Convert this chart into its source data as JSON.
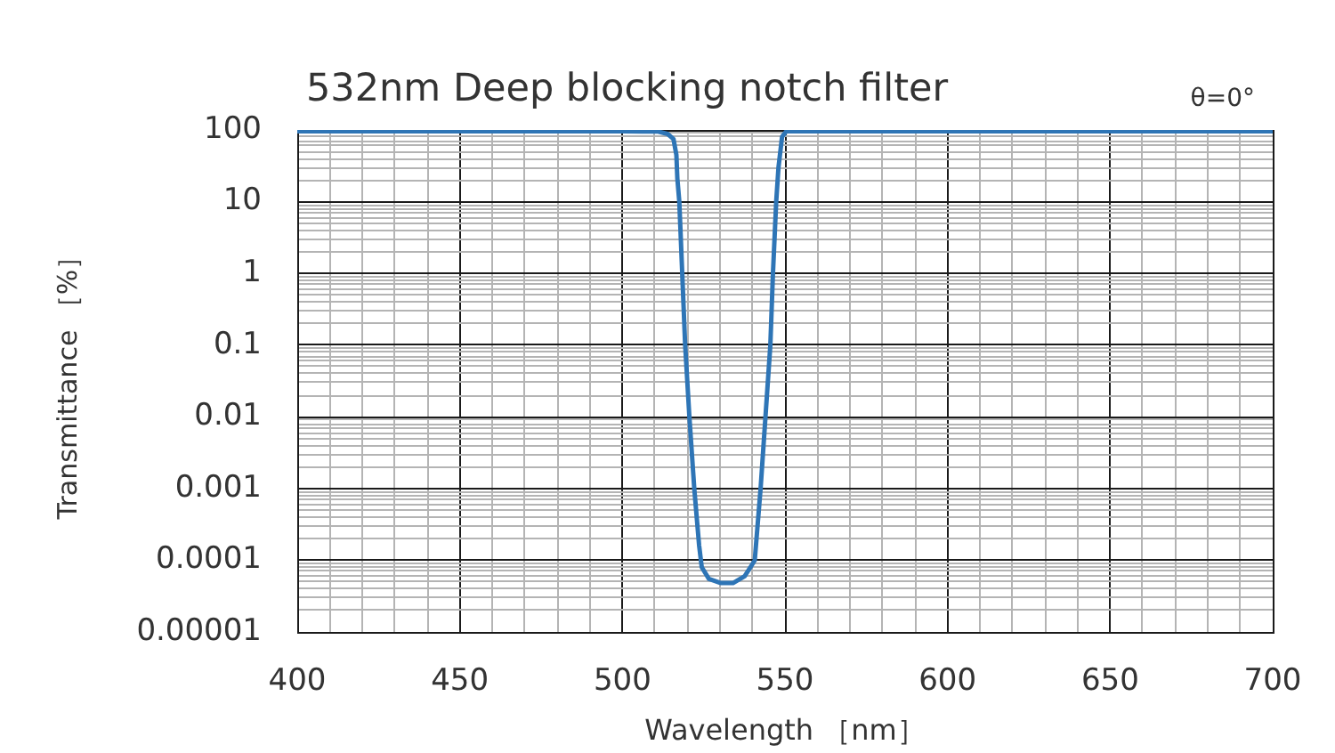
{
  "chart_data": {
    "type": "line",
    "title": "532nm Deep blocking notch filter",
    "xlabel": "Wavelength ［nm］",
    "ylabel": "Transmittance ［%］",
    "annotations": [
      "θ=0°"
    ],
    "x": [
      400,
      450,
      500,
      506,
      511,
      513.9,
      515.7,
      516.6,
      516.9,
      517.5,
      518.4,
      519.3,
      520.6,
      522.1,
      523.6,
      524.4,
      526.6,
      530.3,
      534,
      537.6,
      539.4,
      540.7,
      542.5,
      544,
      545.5,
      546.3,
      547.3,
      548,
      549.1,
      550.4,
      560,
      600,
      650,
      700
    ],
    "series": [
      {
        "color": "#2e75b6",
        "values": [
          96,
          96,
          96,
          95,
          95,
          88,
          75,
          45,
          21,
          10,
          1,
          0.1,
          0.01,
          0.001,
          0.00016,
          8e-05,
          5.5e-05,
          4.8e-05,
          4.8e-05,
          6e-05,
          8e-05,
          0.0001,
          0.001,
          0.01,
          0.1,
          1,
          10,
          30,
          80,
          96,
          96,
          96,
          96,
          96
        ]
      }
    ],
    "xlim": [
      400,
      700
    ],
    "xticks": [
      400,
      {
        "value": 410,
        "label": null
      },
      {
        "value": 420,
        "label": null
      },
      {
        "value": 430,
        "label": null
      },
      {
        "value": 440,
        "label": null
      },
      450,
      {
        "value": 460,
        "label": null
      },
      {
        "value": 470,
        "label": null
      },
      {
        "value": 480,
        "label": null
      },
      {
        "value": 490,
        "label": null
      },
      500,
      {
        "value": 510,
        "label": null
      },
      {
        "value": 520,
        "label": null
      },
      {
        "value": 530,
        "label": null
      },
      {
        "value": 540,
        "label": null
      },
      550,
      {
        "value": 560,
        "label": null
      },
      {
        "value": 570,
        "label": null
      },
      {
        "value": 580,
        "label": null
      },
      {
        "value": 590,
        "label": null
      },
      600,
      {
        "value": 610,
        "label": null
      },
      {
        "value": 620,
        "label": null
      },
      {
        "value": 630,
        "label": null
      },
      {
        "value": 640,
        "label": null
      },
      650,
      {
        "value": 660,
        "label": null
      },
      {
        "value": 670,
        "label": null
      },
      {
        "value": 680,
        "label": null
      },
      {
        "value": 690,
        "label": null
      },
      700
    ],
    "ylim": [
      1e-05,
      100
    ],
    "yticks": [
      {
        "value": 1e-05,
        "label": "0.00001"
      },
      {
        "value": 2e-05,
        "label": null
      },
      {
        "value": 3e-05,
        "label": null
      },
      {
        "value": 4e-05,
        "label": null
      },
      {
        "value": 5e-05,
        "label": null
      },
      {
        "value": 6e-05,
        "label": null
      },
      {
        "value": 7e-05,
        "label": null
      },
      {
        "value": 8e-05,
        "label": null
      },
      {
        "value": 9e-05,
        "label": null
      },
      0.0001,
      {
        "value": 0.0002,
        "label": null
      },
      {
        "value": 0.0003,
        "label": null
      },
      {
        "value": 0.0004,
        "label": null
      },
      {
        "value": 0.0005,
        "label": null
      },
      {
        "value": 0.0006,
        "label": null
      },
      {
        "value": 0.0007,
        "label": null
      },
      {
        "value": 0.0008,
        "label": null
      },
      {
        "value": 0.0009,
        "label": null
      },
      0.001,
      {
        "value": 0.002,
        "label": null
      },
      {
        "value": 0.003,
        "label": null
      },
      {
        "value": 0.004,
        "label": null
      },
      {
        "value": 0.005,
        "label": null
      },
      {
        "value": 0.006,
        "label": null
      },
      {
        "value": 0.007,
        "label": null
      },
      {
        "value": 0.008,
        "label": null
      },
      {
        "value": 0.009,
        "label": null
      },
      0.01,
      {
        "value": 0.02,
        "label": null
      },
      {
        "value": 0.03,
        "label": null
      },
      {
        "value": 0.04,
        "label": null
      },
      {
        "value": 0.05,
        "label": null
      },
      {
        "value": 0.06,
        "label": null
      },
      {
        "value": 0.07,
        "label": null
      },
      {
        "value": 0.08,
        "label": null
      },
      {
        "value": 0.09,
        "label": null
      },
      0.1,
      {
        "value": 0.2,
        "label": null
      },
      {
        "value": 0.3,
        "label": null
      },
      {
        "value": 0.4,
        "label": null
      },
      {
        "value": 0.5,
        "label": null
      },
      {
        "value": 0.6,
        "label": null
      },
      {
        "value": 0.7,
        "label": null
      },
      {
        "value": 0.8,
        "label": null
      },
      {
        "value": 0.9,
        "label": null
      },
      1,
      {
        "value": 2,
        "label": null
      },
      {
        "value": 3,
        "label": null
      },
      {
        "value": 4,
        "label": null
      },
      {
        "value": 5,
        "label": null
      },
      {
        "value": 6,
        "label": null
      },
      {
        "value": 7,
        "label": null
      },
      {
        "value": 8,
        "label": null
      },
      {
        "value": 9,
        "label": null
      },
      10,
      {
        "value": 20,
        "label": null
      },
      {
        "value": 30,
        "label": null
      },
      {
        "value": 40,
        "label": null
      },
      {
        "value": 50,
        "label": null
      },
      {
        "value": 60,
        "label": null
      },
      {
        "value": 70,
        "label": null
      },
      {
        "value": 80,
        "label": null
      },
      {
        "value": 90,
        "label": null
      },
      100
    ],
    "log": "y",
    "grid": true,
    "legend": false,
    "marker": "none",
    "line_style": "solid"
  }
}
